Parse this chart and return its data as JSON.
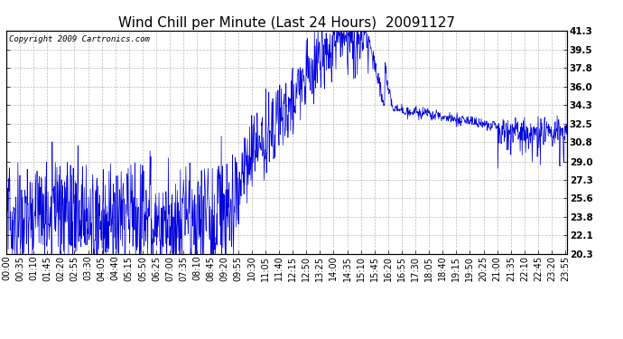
{
  "title": "Wind Chill per Minute (Last 24 Hours)  20091127",
  "copyright_text": "Copyright 2009 Cartronics.com",
  "line_color": "#0000dd",
  "background_color": "#ffffff",
  "plot_bg_color": "#ffffff",
  "grid_color": "#bbbbbb",
  "ylim": [
    20.3,
    41.3
  ],
  "yticks": [
    20.3,
    22.1,
    23.8,
    25.6,
    27.3,
    29.0,
    30.8,
    32.5,
    34.3,
    36.0,
    37.8,
    39.5,
    41.3
  ],
  "xtick_labels": [
    "00:00",
    "00:35",
    "01:10",
    "01:45",
    "02:20",
    "02:55",
    "03:30",
    "04:05",
    "04:40",
    "05:15",
    "05:50",
    "06:25",
    "07:00",
    "07:35",
    "08:10",
    "08:45",
    "09:20",
    "09:55",
    "10:30",
    "11:05",
    "11:40",
    "12:15",
    "12:50",
    "13:25",
    "14:00",
    "14:35",
    "15:10",
    "15:45",
    "16:20",
    "16:55",
    "17:30",
    "18:05",
    "18:40",
    "19:15",
    "19:50",
    "20:25",
    "21:00",
    "21:35",
    "22:10",
    "22:45",
    "23:20",
    "23:55"
  ],
  "title_fontsize": 11,
  "copyright_fontsize": 6.5,
  "tick_fontsize": 7,
  "ytick_fontsize": 7.5
}
